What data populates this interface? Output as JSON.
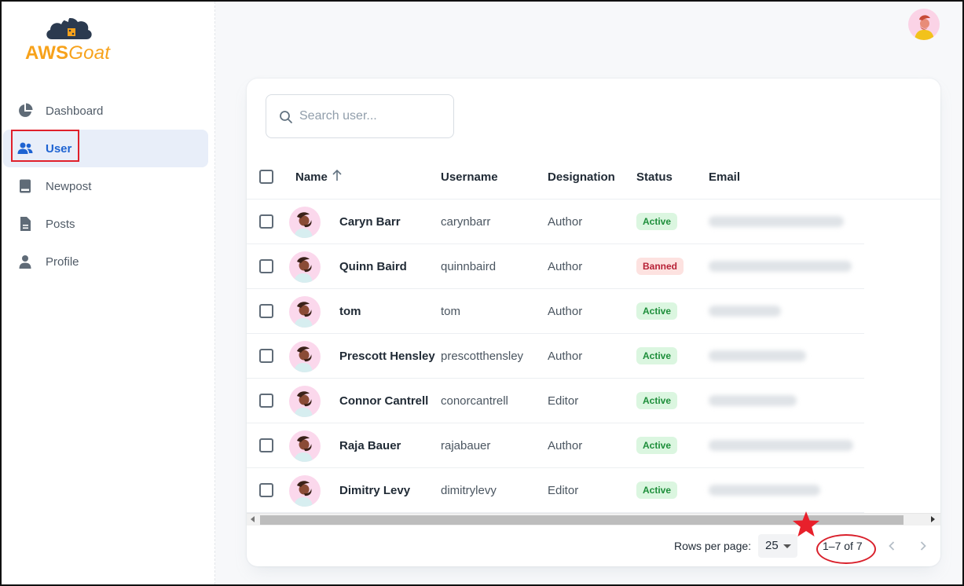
{
  "app": {
    "logo_part1": "AWS",
    "logo_part2": "Goat"
  },
  "sidebar": {
    "items": [
      {
        "label": "Dashboard",
        "icon": "pie-chart-icon"
      },
      {
        "label": "User",
        "icon": "users-icon",
        "active": true
      },
      {
        "label": "Newpost",
        "icon": "book-icon"
      },
      {
        "label": "Posts",
        "icon": "document-icon"
      },
      {
        "label": "Profile",
        "icon": "person-icon"
      }
    ]
  },
  "search": {
    "placeholder": "Search user..."
  },
  "table": {
    "columns": {
      "name": "Name",
      "username": "Username",
      "designation": "Designation",
      "status": "Status",
      "email": "Email"
    },
    "rows": [
      {
        "name": "Caryn Barr",
        "username": "carynbarr",
        "designation": "Author",
        "status": "Active"
      },
      {
        "name": "Quinn Baird",
        "username": "quinnbaird",
        "designation": "Author",
        "status": "Banned"
      },
      {
        "name": "tom",
        "username": "tom",
        "designation": "Author",
        "status": "Active"
      },
      {
        "name": "Prescott Hensley",
        "username": "prescotthensley",
        "designation": "Author",
        "status": "Active"
      },
      {
        "name": "Connor Cantrell",
        "username": "conorcantrell",
        "designation": "Editor",
        "status": "Active"
      },
      {
        "name": "Raja Bauer",
        "username": "rajabauer",
        "designation": "Author",
        "status": "Active"
      },
      {
        "name": "Dimitry Levy",
        "username": "dimitrylevy",
        "designation": "Editor",
        "status": "Active"
      }
    ]
  },
  "pagination": {
    "rows_per_page_label": "Rows per page:",
    "rows_per_page": "25",
    "range": "1–7 of 7"
  },
  "colors": {
    "accent": "#1e63d2",
    "logo": "#f7a21b",
    "active_badge": "#1d8e3a",
    "banned_badge": "#b72136",
    "annotation": "#e0202b"
  }
}
